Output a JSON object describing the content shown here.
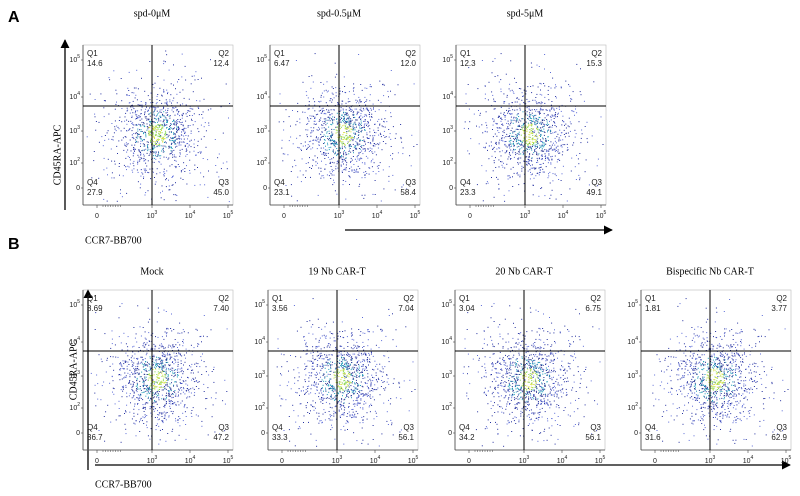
{
  "panels": [
    {
      "label": "A",
      "y_axis_label": "CD45RA-APC",
      "x_axis_label": "CCR7-BB700",
      "plots": [
        {
          "title": "spd-0μM",
          "quadrants": [
            {
              "name": "Q1",
              "value": "14.6"
            },
            {
              "name": "Q2",
              "value": "12.4"
            },
            {
              "name": "Q3",
              "value": "45.0"
            },
            {
              "name": "Q4",
              "value": "27.9"
            }
          ]
        },
        {
          "title": "spd-0.5μM",
          "quadrants": [
            {
              "name": "Q1",
              "value": "6.47"
            },
            {
              "name": "Q2",
              "value": "12.0"
            },
            {
              "name": "Q3",
              "value": "58.4"
            },
            {
              "name": "Q4",
              "value": "23.1"
            }
          ]
        },
        {
          "title": "spd-5μM",
          "quadrants": [
            {
              "name": "Q1",
              "value": "12.3"
            },
            {
              "name": "Q2",
              "value": "15.3"
            },
            {
              "name": "Q3",
              "value": "49.1"
            },
            {
              "name": "Q4",
              "value": "23.3"
            }
          ]
        }
      ]
    },
    {
      "label": "B",
      "y_axis_label": "CD45RA-APC",
      "x_axis_label": "CCR7-BB700",
      "plots": [
        {
          "title": "Mock",
          "quadrants": [
            {
              "name": "Q1",
              "value": "8.69"
            },
            {
              "name": "Q2",
              "value": "7.40"
            },
            {
              "name": "Q3",
              "value": "47.2"
            },
            {
              "name": "Q4",
              "value": "36.7"
            }
          ]
        },
        {
          "title": "19 Nb CAR-T",
          "quadrants": [
            {
              "name": "Q1",
              "value": "3.56"
            },
            {
              "name": "Q2",
              "value": "7.04"
            },
            {
              "name": "Q3",
              "value": "56.1"
            },
            {
              "name": "Q4",
              "value": "33.3"
            }
          ]
        },
        {
          "title": "20 Nb CAR-T",
          "quadrants": [
            {
              "name": "Q1",
              "value": "3.04"
            },
            {
              "name": "Q2",
              "value": "6.75"
            },
            {
              "name": "Q3",
              "value": "56.1"
            },
            {
              "name": "Q4",
              "value": "34.2"
            }
          ]
        },
        {
          "title": "Bispecific Nb CAR-T",
          "quadrants": [
            {
              "name": "Q1",
              "value": "1.81"
            },
            {
              "name": "Q2",
              "value": "3.77"
            },
            {
              "name": "Q3",
              "value": "62.9"
            },
            {
              "name": "Q4",
              "value": "31.6"
            }
          ]
        }
      ]
    }
  ],
  "y_ticks": [
    {
      "base": "10",
      "sup": "5"
    },
    {
      "base": "10",
      "sup": "4"
    },
    {
      "base": "10",
      "sup": "3"
    },
    {
      "base": "10",
      "sup": "2"
    },
    {
      "base": "0"
    }
  ],
  "x_ticks": [
    {
      "base": "0"
    },
    {
      "base": "10",
      "sup": "3"
    },
    {
      "base": "10",
      "sup": "4"
    },
    {
      "base": "10",
      "sup": "5"
    }
  ]
}
